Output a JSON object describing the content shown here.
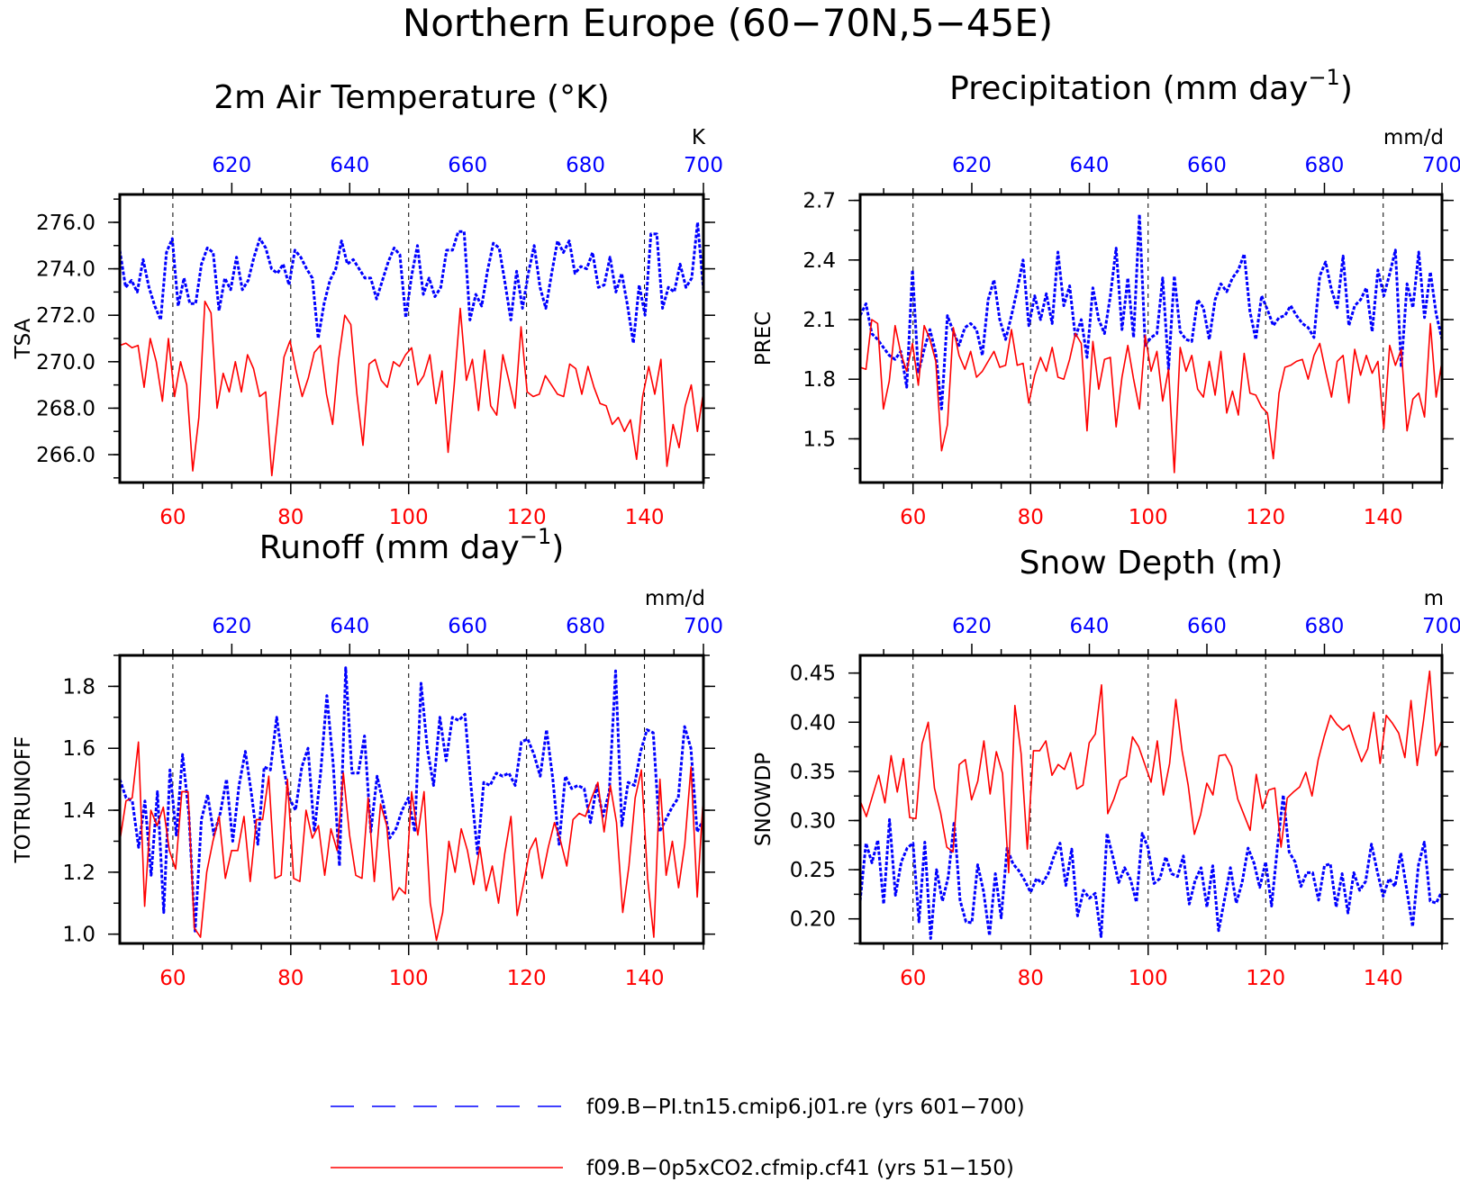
{
  "title": "Northern Europe (60−70N,5−45E)",
  "colors": {
    "red": "#ff0000",
    "blue": "#0000ff",
    "axis": "#000000"
  },
  "chart_data": [
    {
      "type": "line",
      "title": "2m Air Temperature (°K)",
      "ylabel": "TSA",
      "units": "K",
      "ylim": [
        264.8,
        277.2
      ],
      "yticks": [
        "266.0",
        "268.0",
        "270.0",
        "272.0",
        "274.0",
        "276.0"
      ],
      "xlim": [
        51,
        150
      ],
      "xticks": [
        "60",
        "80",
        "100",
        "120",
        "140"
      ],
      "top_xlim": [
        601,
        700
      ],
      "top_xticks": [
        "620",
        "640",
        "660",
        "680",
        "700"
      ],
      "series": [
        {
          "color": "#0000ff",
          "dash": true,
          "values": [
            274.8,
            273.2,
            273.5,
            273.0,
            274.4,
            273.2,
            272.4,
            271.8,
            274.7,
            275.3,
            272.4,
            273.6,
            272.5,
            272.5,
            274.2,
            274.9,
            274.7,
            272.2,
            273.6,
            273.1,
            274.5,
            273.1,
            273.5,
            274.5,
            275.3,
            274.9,
            274.0,
            273.8,
            274.2,
            273.3,
            274.8,
            274.5,
            274.0,
            273.6,
            271.0,
            272.5,
            273.5,
            274.0,
            275.2,
            274.2,
            274.4,
            274.0,
            273.6,
            273.6,
            272.7,
            273.5,
            274.3,
            274.9,
            274.6,
            271.9,
            273.7,
            275.0,
            272.9,
            273.6,
            272.8,
            273.2,
            274.8,
            274.8,
            275.6,
            275.6,
            271.8,
            272.9,
            272.4,
            273.9,
            275.1,
            274.9,
            273.4,
            271.8,
            273.9,
            272.3,
            273.8,
            275.0,
            273.2,
            272.3,
            273.8,
            275.2,
            274.7,
            275.2,
            273.8,
            274.1,
            274.0,
            274.7,
            273.2,
            273.3,
            274.5,
            273.0,
            273.8,
            272.4,
            270.8,
            273.3,
            272.0,
            275.5,
            275.5,
            272.3,
            273.2,
            273.0,
            274.2,
            273.2,
            273.6,
            276.0,
            273.1
          ]
        },
        {
          "color": "#ff0000",
          "dash": false,
          "values": [
            270.7,
            270.8,
            270.6,
            270.7,
            268.9,
            271.0,
            270.0,
            268.3,
            271.0,
            268.5,
            270.0,
            269.0,
            265.3,
            267.6,
            272.6,
            272.1,
            268.0,
            269.5,
            268.7,
            270.0,
            268.7,
            270.3,
            269.7,
            268.5,
            268.7,
            265.1,
            267.6,
            270.2,
            270.9,
            269.6,
            268.5,
            269.3,
            270.4,
            270.7,
            268.6,
            267.3,
            270.1,
            272.0,
            271.6,
            268.6,
            266.4,
            269.9,
            270.1,
            269.2,
            268.9,
            270.0,
            269.8,
            270.3,
            270.6,
            269.0,
            269.4,
            270.3,
            268.2,
            269.6,
            266.1,
            269.0,
            272.3,
            269.2,
            270.1,
            267.9,
            270.5,
            268.1,
            267.7,
            270.3,
            269.2,
            268.0,
            271.5,
            268.7,
            268.5,
            268.6,
            269.4,
            269.0,
            268.6,
            268.5,
            269.9,
            269.7,
            268.6,
            269.8,
            268.9,
            268.2,
            268.1,
            267.3,
            267.6,
            267.0,
            267.5,
            265.8,
            268.5,
            269.8,
            268.6,
            270.1,
            265.5,
            267.3,
            266.3,
            268.1,
            269.0,
            267.0,
            268.7
          ]
        }
      ]
    },
    {
      "type": "line",
      "title": "Precipitation (mm day",
      "title_sup": "−1",
      "title_end": ")",
      "ylabel": "PREC",
      "units": "mm/d",
      "ylim": [
        1.28,
        2.73
      ],
      "yticks": [
        "1.5",
        "1.8",
        "2.1",
        "2.4",
        "2.7"
      ],
      "xlim": [
        51,
        150
      ],
      "xticks": [
        "60",
        "80",
        "100",
        "120",
        "140"
      ],
      "top_xlim": [
        601,
        700
      ],
      "top_xticks": [
        "620",
        "640",
        "660",
        "680",
        "700"
      ],
      "series": [
        {
          "color": "#0000ff",
          "dash": true,
          "values": [
            2.12,
            2.18,
            2.03,
            2.0,
            1.96,
            1.92,
            1.9,
            1.94,
            1.76,
            2.35,
            1.83,
            1.95,
            2.05,
            1.93,
            1.65,
            2.12,
            2.04,
            1.97,
            2.06,
            2.08,
            2.05,
            1.92,
            2.2,
            2.3,
            2.1,
            2.0,
            2.12,
            2.25,
            2.4,
            2.07,
            2.22,
            2.1,
            2.23,
            2.08,
            2.44,
            2.17,
            2.27,
            2.01,
            2.1,
            1.91,
            2.26,
            2.1,
            2.03,
            2.22,
            2.46,
            2.05,
            2.31,
            2.01,
            2.63,
            1.97,
            2.01,
            2.03,
            2.31,
            1.85,
            2.32,
            2.04,
            2.0,
            1.99,
            2.2,
            2.16,
            2.0,
            2.2,
            2.28,
            2.24,
            2.31,
            2.35,
            2.43,
            2.14,
            2.0,
            2.22,
            2.15,
            2.07,
            2.11,
            2.12,
            2.17,
            2.12,
            2.08,
            2.06,
            2.01,
            2.32,
            2.39,
            2.25,
            2.16,
            2.42,
            2.07,
            2.17,
            2.2,
            2.26,
            2.04,
            2.35,
            2.22,
            2.33,
            2.45,
            1.86,
            2.28,
            2.16,
            2.44,
            2.11,
            2.34,
            2.13,
            2.0
          ]
        },
        {
          "color": "#ff0000",
          "dash": false,
          "values": [
            1.86,
            1.85,
            2.1,
            2.08,
            1.65,
            1.79,
            2.07,
            1.93,
            1.84,
            1.98,
            1.77,
            2.07,
            2.0,
            1.89,
            1.44,
            1.57,
            2.06,
            1.92,
            1.85,
            1.94,
            1.81,
            1.84,
            1.89,
            1.94,
            1.86,
            1.87,
            2.05,
            1.87,
            1.88,
            1.68,
            1.82,
            1.91,
            1.84,
            1.96,
            1.81,
            1.8,
            1.9,
            2.03,
            1.98,
            1.54,
            1.99,
            1.75,
            1.9,
            1.91,
            1.56,
            1.81,
            1.97,
            1.8,
            1.65,
            2.02,
            1.84,
            1.94,
            1.69,
            1.85,
            1.33,
            1.96,
            1.84,
            1.92,
            1.75,
            1.71,
            1.89,
            1.72,
            1.94,
            1.63,
            1.74,
            1.62,
            1.93,
            1.73,
            1.72,
            1.66,
            1.63,
            1.4,
            1.73,
            1.86,
            1.87,
            1.89,
            1.9,
            1.8,
            1.92,
            1.98,
            1.84,
            1.71,
            1.89,
            1.92,
            1.68,
            1.95,
            1.82,
            1.92,
            1.83,
            1.89,
            1.55,
            1.97,
            1.87,
            1.95,
            1.54,
            1.7,
            1.73,
            1.61,
            2.08,
            1.71,
            1.89
          ]
        }
      ]
    },
    {
      "type": "line",
      "title": "Runoff (mm day",
      "title_sup": "−1",
      "title_end": ")",
      "ylabel": "TOTRUNOFF",
      "units": "mm/d",
      "ylim": [
        0.97,
        1.9
      ],
      "yticks": [
        "1.0",
        "1.2",
        "1.4",
        "1.6",
        "1.8"
      ],
      "xlim": [
        51,
        150
      ],
      "xticks": [
        "60",
        "80",
        "100",
        "120",
        "140"
      ],
      "top_xlim": [
        601,
        700
      ],
      "top_xticks": [
        "620",
        "640",
        "660",
        "680",
        "700"
      ],
      "series": [
        {
          "color": "#0000ff",
          "dash": true,
          "values": [
            1.5,
            1.44,
            1.43,
            1.28,
            1.43,
            1.19,
            1.46,
            1.07,
            1.53,
            1.32,
            1.58,
            1.39,
            1.01,
            1.37,
            1.45,
            1.32,
            1.39,
            1.5,
            1.3,
            1.48,
            1.59,
            1.45,
            1.29,
            1.54,
            1.53,
            1.7,
            1.55,
            1.44,
            1.4,
            1.54,
            1.6,
            1.33,
            1.52,
            1.77,
            1.55,
            1.22,
            1.86,
            1.52,
            1.52,
            1.64,
            1.33,
            1.51,
            1.42,
            1.31,
            1.34,
            1.4,
            1.44,
            1.33,
            1.81,
            1.6,
            1.48,
            1.7,
            1.56,
            1.7,
            1.69,
            1.71,
            1.47,
            1.26,
            1.49,
            1.48,
            1.52,
            1.51,
            1.52,
            1.48,
            1.62,
            1.63,
            1.58,
            1.51,
            1.66,
            1.5,
            1.29,
            1.51,
            1.47,
            1.48,
            1.47,
            1.36,
            1.48,
            1.38,
            1.46,
            1.85,
            1.35,
            1.49,
            1.48,
            1.59,
            1.66,
            1.65,
            1.33,
            1.37,
            1.41,
            1.44,
            1.67,
            1.6,
            1.33,
            1.37
          ]
        },
        {
          "color": "#ff0000",
          "dash": false,
          "values": [
            1.3,
            1.43,
            1.44,
            1.62,
            1.09,
            1.4,
            1.35,
            1.41,
            1.27,
            1.21,
            1.46,
            1.46,
            1.02,
            0.99,
            1.2,
            1.3,
            1.38,
            1.18,
            1.27,
            1.27,
            1.38,
            1.17,
            1.37,
            1.37,
            1.51,
            1.18,
            1.19,
            1.5,
            1.18,
            1.17,
            1.4,
            1.31,
            1.35,
            1.19,
            1.34,
            1.27,
            1.52,
            1.32,
            1.19,
            1.18,
            1.44,
            1.17,
            1.42,
            1.35,
            1.11,
            1.15,
            1.13,
            1.46,
            1.32,
            1.46,
            1.1,
            0.98,
            1.07,
            1.3,
            1.2,
            1.34,
            1.27,
            1.16,
            1.28,
            1.14,
            1.22,
            1.1,
            1.26,
            1.38,
            1.06,
            1.16,
            1.27,
            1.31,
            1.18,
            1.28,
            1.36,
            1.3,
            1.22,
            1.37,
            1.39,
            1.38,
            1.44,
            1.49,
            1.33,
            1.48,
            1.36,
            1.07,
            1.22,
            1.44,
            1.53,
            1.18,
            0.99,
            1.5,
            1.19,
            1.3,
            1.15,
            1.29,
            1.54,
            1.12,
            1.45
          ]
        }
      ]
    },
    {
      "type": "line",
      "title": "Snow Depth (m)",
      "ylabel": "SNOWDP",
      "units": "m",
      "ylim": [
        0.175,
        0.468
      ],
      "yticks": [
        "0.20",
        "0.25",
        "0.30",
        "0.35",
        "0.40",
        "0.45"
      ],
      "xlim": [
        51,
        150
      ],
      "xticks": [
        "60",
        "80",
        "100",
        "120",
        "140"
      ],
      "top_xlim": [
        601,
        700
      ],
      "top_xticks": [
        "620",
        "640",
        "660",
        "680",
        "700"
      ],
      "series": [
        {
          "color": "#0000ff",
          "dash": true,
          "values": [
            0.218,
            0.277,
            0.257,
            0.28,
            0.215,
            0.301,
            0.224,
            0.258,
            0.272,
            0.277,
            0.197,
            0.278,
            0.18,
            0.25,
            0.218,
            0.243,
            0.299,
            0.219,
            0.197,
            0.196,
            0.255,
            0.228,
            0.183,
            0.246,
            0.201,
            0.272,
            0.256,
            0.249,
            0.239,
            0.227,
            0.241,
            0.236,
            0.246,
            0.264,
            0.277,
            0.234,
            0.271,
            0.203,
            0.229,
            0.221,
            0.226,
            0.182,
            0.287,
            0.263,
            0.237,
            0.252,
            0.24,
            0.217,
            0.287,
            0.272,
            0.236,
            0.241,
            0.263,
            0.246,
            0.243,
            0.264,
            0.215,
            0.239,
            0.252,
            0.212,
            0.254,
            0.188,
            0.22,
            0.252,
            0.216,
            0.237,
            0.272,
            0.257,
            0.232,
            0.258,
            0.213,
            0.273,
            0.326,
            0.268,
            0.258,
            0.233,
            0.247,
            0.247,
            0.219,
            0.254,
            0.256,
            0.212,
            0.246,
            0.206,
            0.247,
            0.229,
            0.238,
            0.276,
            0.248,
            0.223,
            0.241,
            0.233,
            0.267,
            0.23,
            0.192,
            0.255,
            0.278,
            0.218,
            0.216,
            0.228
          ]
        },
        {
          "color": "#ff0000",
          "dash": false,
          "values": [
            0.32,
            0.304,
            0.325,
            0.346,
            0.318,
            0.366,
            0.329,
            0.363,
            0.303,
            0.302,
            0.378,
            0.4,
            0.333,
            0.308,
            0.273,
            0.268,
            0.357,
            0.362,
            0.321,
            0.34,
            0.381,
            0.327,
            0.37,
            0.348,
            0.247,
            0.417,
            0.368,
            0.271,
            0.371,
            0.371,
            0.381,
            0.346,
            0.357,
            0.352,
            0.369,
            0.332,
            0.336,
            0.379,
            0.388,
            0.438,
            0.307,
            0.322,
            0.341,
            0.345,
            0.385,
            0.375,
            0.357,
            0.339,
            0.381,
            0.326,
            0.358,
            0.423,
            0.371,
            0.336,
            0.286,
            0.306,
            0.338,
            0.326,
            0.366,
            0.367,
            0.355,
            0.322,
            0.306,
            0.29,
            0.347,
            0.312,
            0.331,
            0.333,
            0.273,
            0.323,
            0.329,
            0.334,
            0.349,
            0.325,
            0.362,
            0.386,
            0.407,
            0.398,
            0.392,
            0.397,
            0.378,
            0.36,
            0.373,
            0.41,
            0.358,
            0.407,
            0.399,
            0.389,
            0.364,
            0.422,
            0.356,
            0.401,
            0.452,
            0.366,
            0.382
          ]
        }
      ]
    }
  ],
  "legend": [
    {
      "color": "#0000ff",
      "dash": true,
      "label": "f09.B−PI.tn15.cmip6.j01.re (yrs 601−700)"
    },
    {
      "color": "#ff0000",
      "dash": false,
      "label": "f09.B−0p5xCO2.cfmip.cf41 (yrs 51−150)"
    }
  ]
}
